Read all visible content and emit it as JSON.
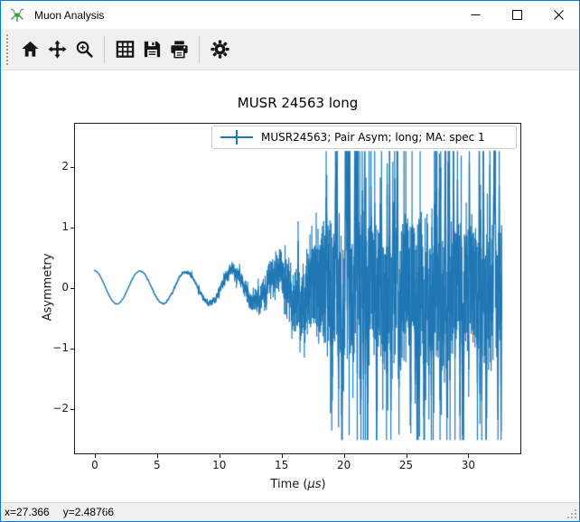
{
  "window": {
    "title": "Muon Analysis",
    "border_color": "#0078d7",
    "controls": [
      "minimize",
      "maximize",
      "close"
    ]
  },
  "toolbar": {
    "icons": [
      "home",
      "pan",
      "zoom",
      "grid",
      "save",
      "print",
      "settings"
    ]
  },
  "statusbar": {
    "x_readout": "x=27.366",
    "y_readout": "y=2.48766"
  },
  "chart_data": {
    "type": "line",
    "subtype": "errorbar",
    "title": "MUSR 24563 long",
    "ylabel": "Asymmetry",
    "xlabel_prefix": "Time (",
    "xlabel_unit": "μs",
    "xlabel_suffix": ")",
    "legend": {
      "label": "MUSR24563; Pair Asym; long; MA: spec 1",
      "position": "upper right"
    },
    "series_color": "#1f77b4",
    "grid": false,
    "xlim": [
      -1.52,
      34.25
    ],
    "ylim": [
      -2.74,
      2.7
    ],
    "xticks": [
      {
        "v": 0,
        "label": "0"
      },
      {
        "v": 5,
        "label": "5"
      },
      {
        "v": 10,
        "label": "10"
      },
      {
        "v": 15,
        "label": "15"
      },
      {
        "v": 20,
        "label": "20"
      },
      {
        "v": 25,
        "label": "25"
      },
      {
        "v": 30,
        "label": "30"
      }
    ],
    "yticks": [
      {
        "v": -2,
        "label": "−2"
      },
      {
        "v": -1,
        "label": "−1"
      },
      {
        "v": 0,
        "label": "0"
      },
      {
        "v": 1,
        "label": "1"
      },
      {
        "v": 2,
        "label": "2"
      }
    ],
    "signal_model": {
      "description": "muon spin precession asymmetry, A*cos(2*pi*t/T), with exponentially growing statistical scatter and error bars at late decay times",
      "t_start": 0,
      "t_end": 32.8,
      "dt": 0.05,
      "amplitude": 0.28,
      "period_us": 3.7,
      "decay_tau_us": 100,
      "spread0": 0.0022,
      "spread_tau_us": 2.9,
      "err_frac": 0.6,
      "err_max": 0.8,
      "sigma_frac": 0.45,
      "sigma_max": 0.22,
      "band_offset": -0.07,
      "outlier_threshold": 0.45,
      "outlier_scale": 3.5,
      "outlier_max_prob": 0.42,
      "outlier_grow_ref": 1.6,
      "value_ceiling": 2.25,
      "value_floor": -2.52,
      "seed": 7
    }
  }
}
